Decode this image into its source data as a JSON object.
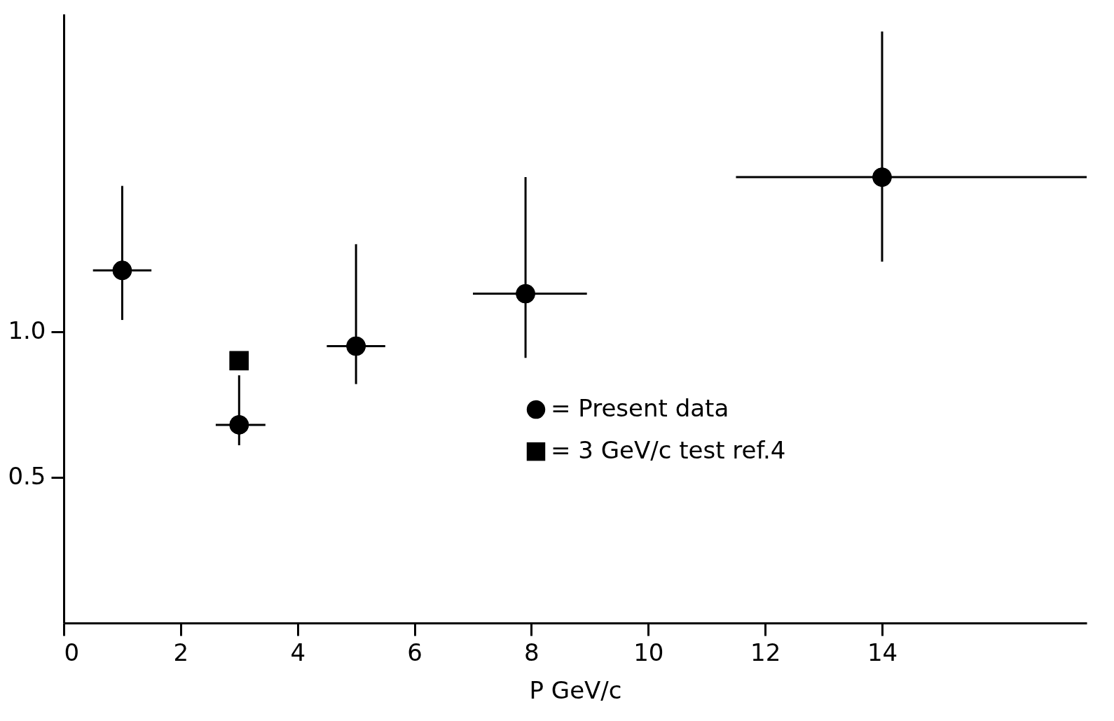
{
  "chart_data": {
    "type": "scatter",
    "xlabel": "P  GeV/c",
    "xlim": [
      0,
      17.5
    ],
    "xticks": [
      0,
      2,
      4,
      6,
      8,
      10,
      12,
      14
    ],
    "ylim": [
      0,
      2.09
    ],
    "yticks": [
      {
        "value": 0.5,
        "label": "0.5"
      },
      {
        "value": 1,
        "label": "1.0"
      }
    ],
    "grid": false,
    "legend": "center",
    "series": [
      {
        "name": "= Present data",
        "color": "#000000",
        "marker": "circle",
        "x": [
          1,
          3,
          5,
          7.9,
          14
        ],
        "values": [
          1.21,
          0.68,
          0.95,
          1.13,
          1.53
        ],
        "errors": [
          [
            1.04,
            1.5
          ],
          [
            0.61,
            0.85
          ],
          [
            0.82,
            1.3
          ],
          [
            0.91,
            1.53
          ],
          [
            1.24,
            2.03
          ]
        ],
        "xerrors": [
          [
            0.5,
            1.5
          ],
          [
            2.6,
            3.45
          ],
          [
            4.5,
            5.5
          ],
          [
            7,
            8.95
          ],
          [
            11.5,
            17.5
          ]
        ]
      },
      {
        "name": "= 3 GeV/c test ref.4",
        "color": "#000000",
        "marker": "square",
        "x": [
          3
        ],
        "values": [
          0.9
        ]
      }
    ]
  }
}
